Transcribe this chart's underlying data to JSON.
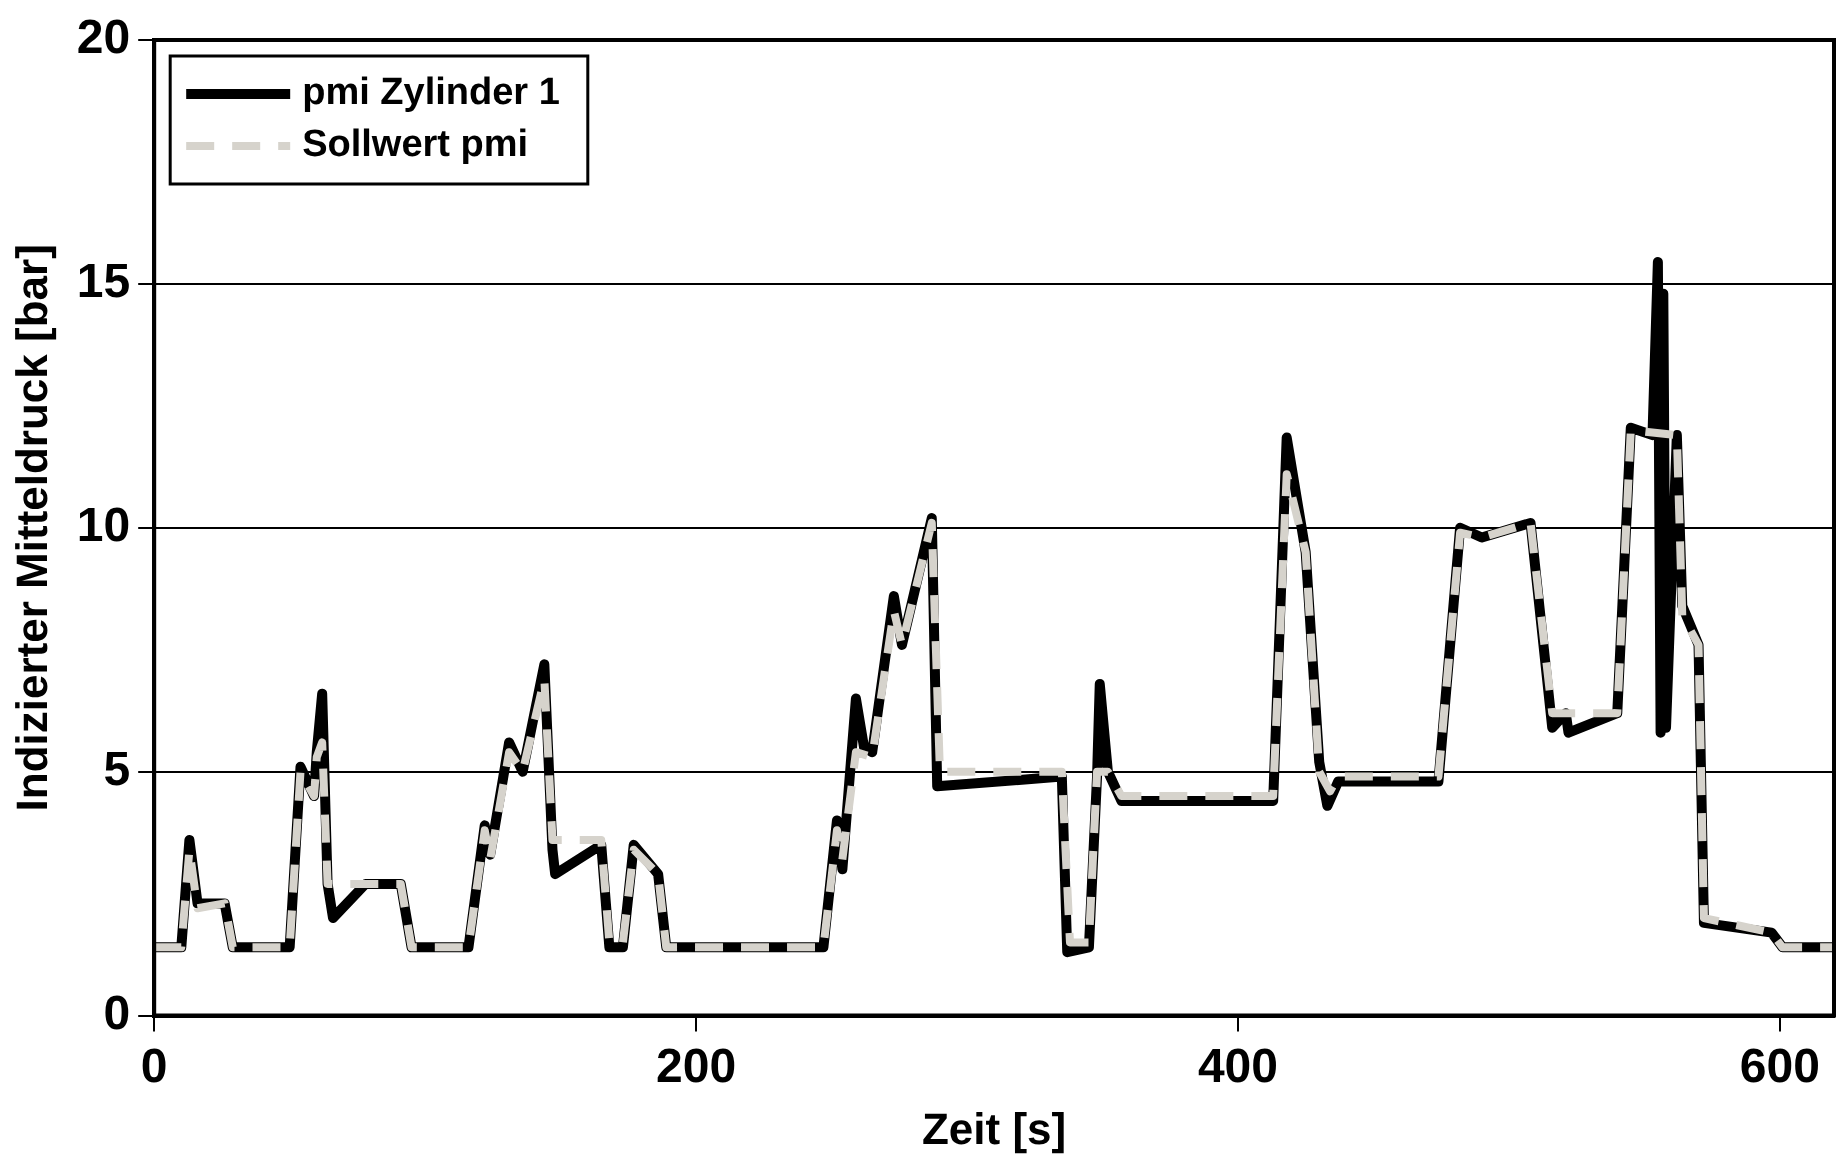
{
  "chart_data": {
    "type": "line",
    "xlabel": "Zeit [s]",
    "ylabel": "Indizierter Mitteldruck [bar]",
    "xlim": [
      0,
      620
    ],
    "ylim": [
      0,
      20
    ],
    "xticks": [
      0,
      200,
      400,
      600
    ],
    "yticks": [
      0,
      5,
      10,
      15,
      20
    ],
    "grid": "y",
    "legend": "top left",
    "marker": "none",
    "series": [
      {
        "name": "pmi Zylinder 1",
        "color": "#000000",
        "line_style": "solid",
        "x": [
          0,
          10,
          13,
          16,
          19,
          26,
          29,
          50,
          54,
          59,
          60,
          62,
          64,
          66,
          78,
          91,
          95,
          116,
          122,
          124,
          131,
          136,
          144,
          147,
          148,
          165,
          168,
          173,
          177,
          186,
          189,
          247,
          252,
          254,
          259,
          262,
          265,
          273,
          276,
          287,
          289,
          335,
          337,
          345,
          348,
          349,
          352,
          357,
          413,
          418,
          425,
          430,
          433,
          437,
          474,
          482,
          490,
          508,
          516,
          521,
          522,
          540,
          545,
          553,
          555,
          556,
          557,
          558,
          562,
          564,
          570,
          572,
          597,
          601,
          620
        ],
        "values": [
          1.4,
          1.4,
          3.6,
          2.3,
          2.3,
          2.3,
          1.4,
          1.4,
          5.1,
          4.5,
          5.4,
          6.6,
          2.7,
          2.0,
          2.7,
          2.7,
          1.4,
          1.4,
          3.9,
          3.3,
          5.6,
          5.0,
          7.2,
          3.4,
          2.9,
          3.5,
          1.4,
          1.4,
          3.5,
          2.9,
          1.4,
          1.4,
          4.0,
          3.0,
          6.5,
          5.5,
          5.4,
          8.6,
          7.6,
          10.2,
          4.7,
          4.9,
          1.3,
          1.4,
          4.9,
          6.8,
          5.0,
          4.4,
          4.4,
          11.85,
          9.5,
          5.2,
          4.3,
          4.8,
          4.8,
          10.0,
          9.8,
          10.1,
          5.9,
          6.2,
          5.8,
          6.2,
          12.05,
          11.9,
          15.45,
          5.8,
          14.8,
          5.9,
          11.9,
          8.4,
          7.6,
          1.9,
          1.7,
          1.4,
          1.4
        ]
      },
      {
        "name": "Sollwert pmi",
        "color": "#d6d3cc",
        "line_style": "dashed",
        "x": [
          0,
          10,
          13,
          16,
          26,
          29,
          50,
          54,
          59,
          60,
          62,
          64,
          91,
          95,
          116,
          122,
          124,
          131,
          136,
          144,
          147,
          165,
          168,
          173,
          177,
          186,
          189,
          247,
          252,
          254,
          259,
          265,
          273,
          276,
          287,
          290,
          335,
          338,
          345,
          348,
          352,
          357,
          413,
          418,
          425,
          430,
          434,
          437,
          474,
          482,
          490,
          508,
          516,
          540,
          545,
          562,
          564,
          570,
          572,
          597,
          601,
          620
        ],
        "values": [
          1.4,
          1.4,
          3.4,
          2.2,
          2.3,
          1.4,
          1.4,
          5.0,
          4.5,
          5.3,
          5.6,
          2.7,
          2.7,
          1.4,
          1.4,
          3.8,
          3.2,
          5.4,
          5.0,
          6.9,
          3.6,
          3.6,
          1.5,
          1.5,
          3.4,
          2.9,
          1.4,
          1.4,
          3.8,
          3.2,
          5.4,
          5.3,
          8.3,
          7.6,
          10.1,
          5.0,
          5.0,
          1.5,
          1.5,
          5.0,
          5.0,
          4.5,
          4.5,
          11.1,
          9.5,
          5.0,
          4.6,
          4.9,
          4.9,
          9.9,
          9.8,
          10.1,
          6.2,
          6.2,
          12.0,
          11.9,
          8.2,
          7.6,
          2.0,
          1.7,
          1.4,
          1.4
        ]
      }
    ]
  }
}
